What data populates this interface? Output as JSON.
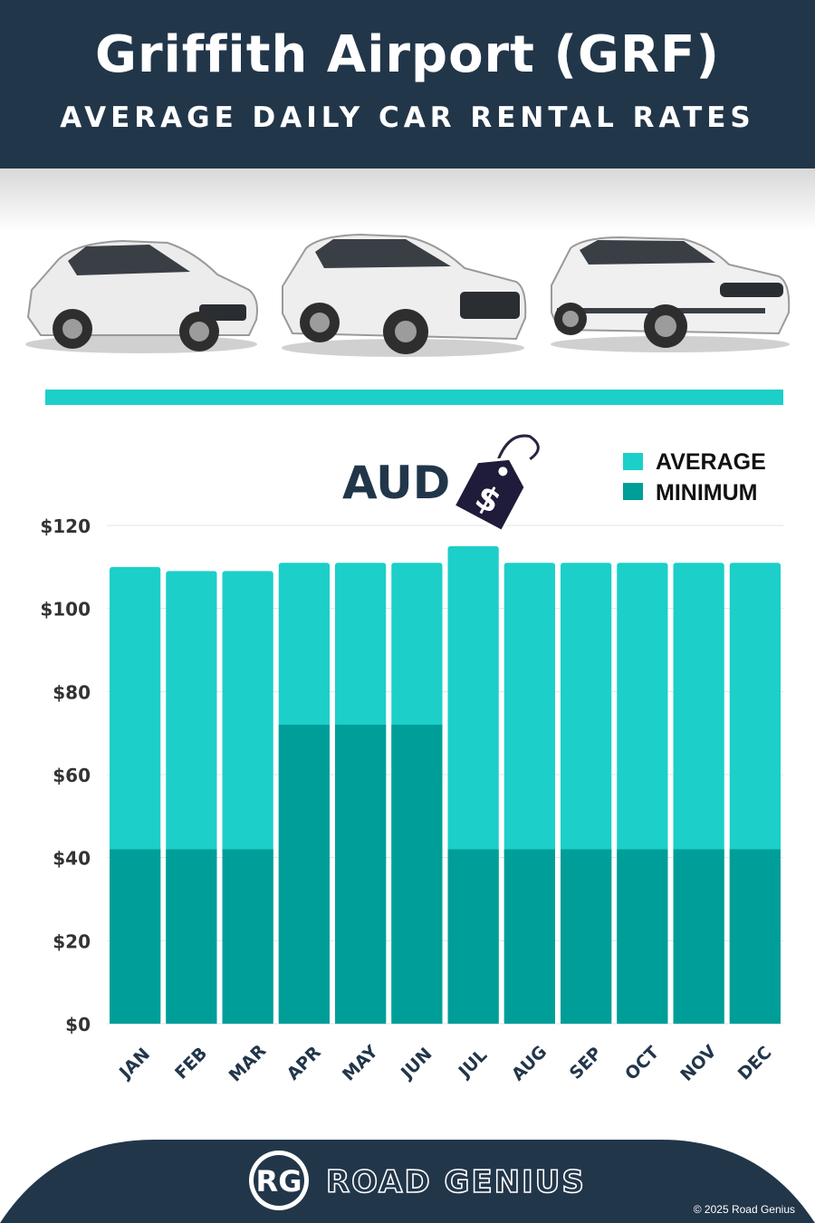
{
  "header": {
    "title": "Griffith Airport (GRF)",
    "subtitle": "AVERAGE DAILY CAR RENTAL RATES"
  },
  "currency_label": "AUD",
  "price_tag_symbol": "$",
  "colors": {
    "header_bg": "#22364a",
    "average": "#1ccfc9",
    "minimum": "#009e98",
    "axis_text": "#333333",
    "month_text": "#22364a"
  },
  "chart_data": {
    "type": "bar",
    "stacked": "overlay",
    "categories": [
      "JAN",
      "FEB",
      "MAR",
      "APR",
      "MAY",
      "JUN",
      "JUL",
      "AUG",
      "SEP",
      "OCT",
      "NOV",
      "DEC"
    ],
    "series": [
      {
        "name": "AVERAGE",
        "color": "#1ccfc9",
        "values": [
          110,
          109,
          109,
          111,
          111,
          111,
          115,
          111,
          111,
          111,
          111,
          111
        ]
      },
      {
        "name": "MINIMUM",
        "color": "#009e98",
        "values": [
          42,
          42,
          42,
          72,
          72,
          72,
          42,
          42,
          42,
          42,
          42,
          42
        ]
      }
    ],
    "yticks": [
      "$0",
      "$20",
      "$40",
      "$60",
      "$80",
      "$100",
      "$120"
    ],
    "ylim": [
      0,
      120
    ],
    "grid": true,
    "legend": "top-right"
  },
  "footer": {
    "brand_mark": "RG",
    "brand_name": "ROAD GENIUS",
    "copyright": "© 2025 Road Genius"
  }
}
